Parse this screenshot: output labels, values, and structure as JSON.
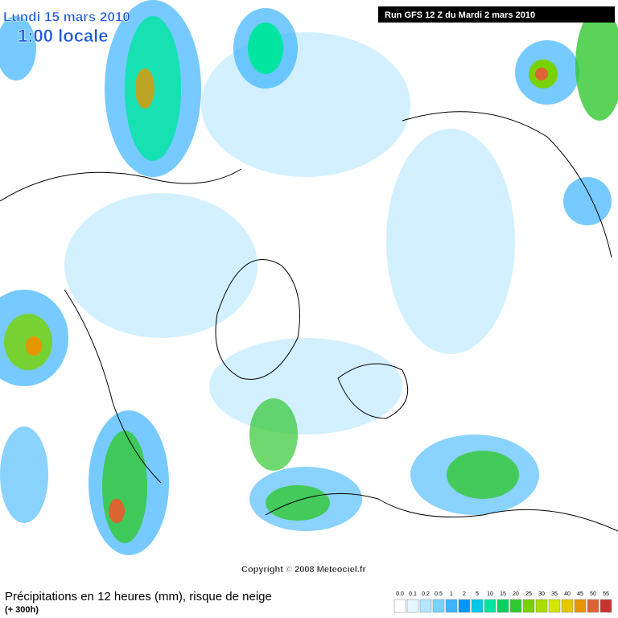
{
  "header": {
    "date": "Lundi 15 mars 2010",
    "time": "1:00 locale",
    "run": "Run GFS 12 Z du Mardi 2 mars 2010"
  },
  "map": {
    "copyright": "Copyright © 2008 Meteociel.fr"
  },
  "footer": {
    "title": "Précipitations en 12 heures (mm), risque de neige",
    "lead": "(+ 300h)"
  },
  "legend": {
    "items": [
      {
        "label": "0.0",
        "color": "#ffffff"
      },
      {
        "label": "0.1",
        "color": "#e6f6ff"
      },
      {
        "label": "0.2",
        "color": "#b4e6ff"
      },
      {
        "label": "0.5",
        "color": "#78d2ff"
      },
      {
        "label": "1",
        "color": "#3cb4ff"
      },
      {
        "label": "2",
        "color": "#0096ff"
      },
      {
        "label": "5",
        "color": "#00c8e6"
      },
      {
        "label": "10",
        "color": "#00e6a0"
      },
      {
        "label": "15",
        "color": "#00d25a"
      },
      {
        "label": "20",
        "color": "#32c832"
      },
      {
        "label": "25",
        "color": "#78d200"
      },
      {
        "label": "30",
        "color": "#aadc00"
      },
      {
        "label": "35",
        "color": "#d2e600"
      },
      {
        "label": "40",
        "color": "#e6c800"
      },
      {
        "label": "45",
        "color": "#e69600"
      },
      {
        "label": "50",
        "color": "#dc6432"
      },
      {
        "label": "55",
        "color": "#c83232"
      }
    ]
  }
}
